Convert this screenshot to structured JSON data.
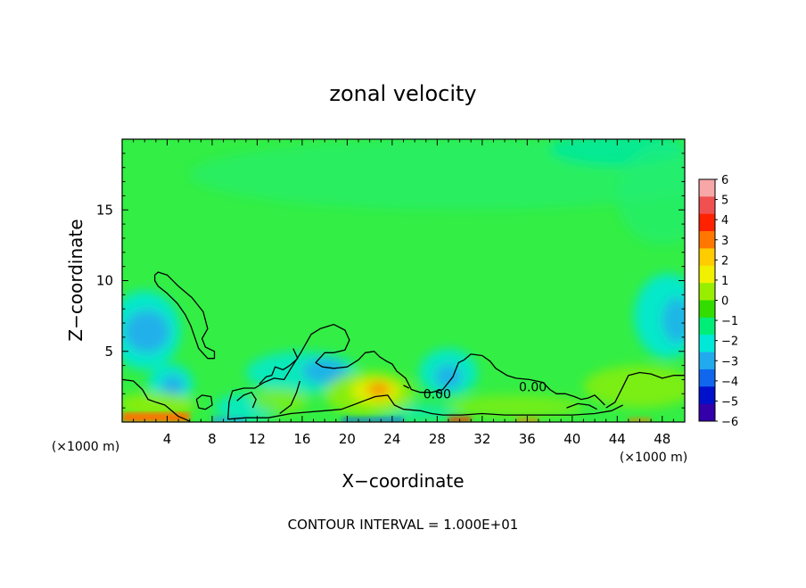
{
  "chart_data": {
    "type": "heatmap",
    "title": "zonal velocity",
    "xlabel": "X−coordinate",
    "ylabel": "Z−coordinate",
    "x_unit_left": "(×1000 m)",
    "x_unit_right": "(×1000 m)",
    "footer": "CONTOUR INTERVAL = 1.000E+01",
    "xlim": [
      0,
      50
    ],
    "ylim": [
      0,
      20
    ],
    "x_ticks": [
      4,
      8,
      12,
      16,
      20,
      24,
      28,
      32,
      36,
      40,
      44,
      48
    ],
    "x_tick_labels": [
      "4",
      "8",
      "12",
      "16",
      "20",
      "24",
      "28",
      "32",
      "36",
      "40",
      "44",
      "48"
    ],
    "y_ticks": [
      5,
      10,
      15
    ],
    "y_tick_labels": [
      "5",
      "10",
      "15"
    ],
    "contour_labels": [
      {
        "text": "0.00",
        "x": 28,
        "z": 2.0
      },
      {
        "text": "0.00",
        "x": 36.5,
        "z": 2.5
      }
    ],
    "colorbar": {
      "levels": [
        "6",
        "5",
        "4",
        "3",
        "2",
        "1",
        "0",
        "−1",
        "−2",
        "−3",
        "−4",
        "−5",
        "−6"
      ],
      "colors": [
        "#f7a7a7",
        "#f05050",
        "#ff2200",
        "#ff7700",
        "#ffcc00",
        "#f0f000",
        "#99ee00",
        "#33dd00",
        "#00ee77",
        "#00e8d8",
        "#22aaee",
        "#1166ee",
        "#0011cc",
        "#3300aa"
      ]
    },
    "field_colors": {
      "background": "#33ee44",
      "upper": "#22ee77",
      "top_band": "#00e8a0",
      "negative_weak": "#00e8d8",
      "negative_mid": "#22aaee",
      "negative_strong": "#1166ee",
      "positive_weak": "#99ee00",
      "positive_mid": "#f0f000",
      "positive_strong": "#ff7700",
      "positive_max": "#ff2200"
    }
  }
}
